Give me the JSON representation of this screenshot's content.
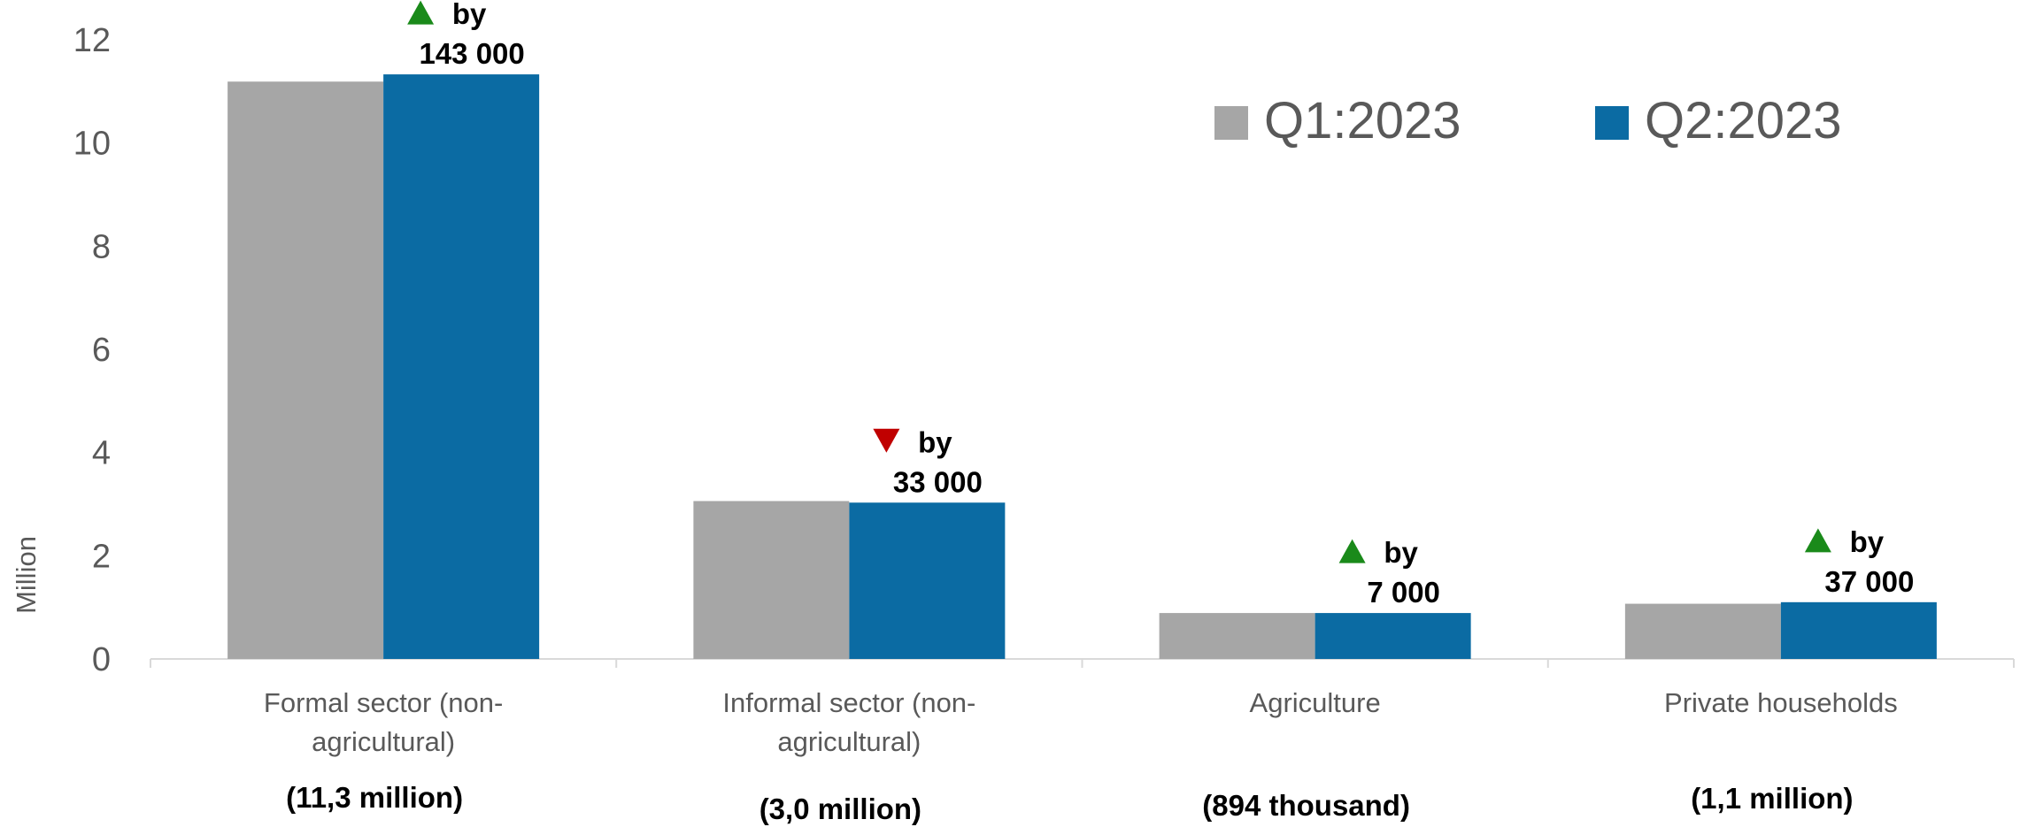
{
  "chart_data": {
    "type": "bar",
    "ylabel": "Million",
    "ylim": [
      0,
      12
    ],
    "yticks": [
      0,
      2,
      4,
      6,
      8,
      10,
      12
    ],
    "grid": false,
    "legend_position": "top-right",
    "categories": [
      [
        "Formal sector (non-",
        "agricultural)"
      ],
      [
        "Informal sector (non-",
        "agricultural)"
      ],
      [
        "Agriculture"
      ],
      [
        "Private households"
      ]
    ],
    "totals": [
      "(11,3 million)",
      "(3,0 million)",
      "(894 thousand)",
      "(1,1 million)"
    ],
    "series": [
      {
        "name": "Q1:2023",
        "color": "#a6a6a6",
        "values": [
          11.19,
          3.06,
          0.89,
          1.07
        ]
      },
      {
        "name": "Q2:2023",
        "color": "#0b6ba3",
        "values": [
          11.33,
          3.03,
          0.89,
          1.1
        ]
      }
    ],
    "annotations": [
      {
        "direction": "up",
        "icon": "triangle-up-icon",
        "color": "#1a8a1a",
        "word": "by",
        "amount": "143 000"
      },
      {
        "direction": "down",
        "icon": "triangle-down-icon",
        "color": "#c00000",
        "word": "by",
        "amount": "33 000"
      },
      {
        "direction": "up",
        "icon": "triangle-up-icon",
        "color": "#1a8a1a",
        "word": "by",
        "amount": "7 000"
      },
      {
        "direction": "up",
        "icon": "triangle-up-icon",
        "color": "#1a8a1a",
        "word": "by",
        "amount": "37 000"
      }
    ]
  }
}
